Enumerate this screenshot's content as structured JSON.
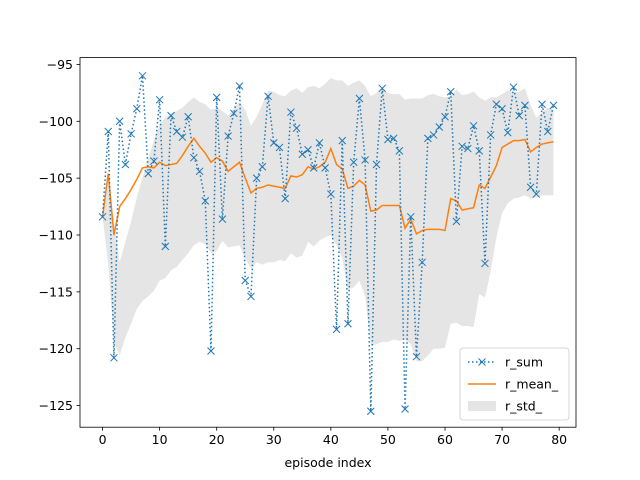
{
  "chart_data": {
    "type": "line",
    "title": "",
    "xlabel": "episode index",
    "ylabel": "",
    "xlim": [
      -3.95,
      82.95
    ],
    "ylim": [
      -126.9,
      -94.4
    ],
    "xticks": [
      0,
      10,
      20,
      30,
      40,
      50,
      60,
      70,
      80
    ],
    "yticks": [
      -125,
      -120,
      -115,
      -110,
      -105,
      -100,
      -95
    ],
    "grid": false,
    "legend_position": "lower-right",
    "colors": {
      "r_sum": "#1f77b4",
      "r_mean_": "#ff7f0e",
      "r_std_": "#d3d3d3"
    },
    "x": [
      0,
      1,
      2,
      3,
      4,
      5,
      6,
      7,
      8,
      9,
      10,
      11,
      12,
      13,
      14,
      15,
      16,
      17,
      18,
      19,
      20,
      21,
      22,
      23,
      24,
      25,
      26,
      27,
      28,
      29,
      30,
      31,
      32,
      33,
      34,
      35,
      36,
      37,
      38,
      39,
      40,
      41,
      42,
      43,
      44,
      45,
      46,
      47,
      48,
      49,
      50,
      51,
      52,
      53,
      54,
      55,
      56,
      57,
      58,
      59,
      60,
      61,
      62,
      63,
      64,
      65,
      66,
      67,
      68,
      69,
      70,
      71,
      72,
      73,
      74,
      75,
      76,
      77,
      78,
      79
    ],
    "series": [
      {
        "name": "r_sum",
        "style": "dotted-x",
        "values": [
          -108.4,
          -100.9,
          -120.8,
          -100.0,
          -103.8,
          -101.1,
          -98.9,
          -96.0,
          -104.6,
          -103.5,
          -98.1,
          -111.0,
          -99.5,
          -100.9,
          -101.4,
          -99.6,
          -103.2,
          -104.4,
          -107.0,
          -120.2,
          -97.9,
          -108.6,
          -101.3,
          -99.3,
          -96.9,
          -114.0,
          -115.4,
          -105.0,
          -104.0,
          -97.8,
          -101.9,
          -102.3,
          -106.8,
          -99.2,
          -100.6,
          -102.9,
          -102.5,
          -104.1,
          -101.9,
          -104.1,
          -106.4,
          -118.3,
          -101.7,
          -117.8,
          -103.6,
          -98.0,
          -103.4,
          -125.5,
          -103.8,
          -97.1,
          -101.6,
          -101.5,
          -102.6,
          -125.3,
          -108.4,
          -120.7,
          -112.4,
          -101.5,
          -101.2,
          -100.5,
          -99.6,
          -97.4,
          -108.8,
          -102.2,
          -102.4,
          -100.4,
          -102.6,
          -112.5,
          -101.2,
          -98.5,
          -98.9,
          -101.0,
          -97.0,
          -99.5,
          -98.6,
          -105.8,
          -106.4,
          -98.5,
          -100.9,
          -98.6
        ]
      },
      {
        "name": "r_mean_",
        "style": "solid",
        "values": [
          -108.4,
          -104.6,
          -110.0,
          -107.5,
          -106.8,
          -106.0,
          -105.1,
          -104.1,
          -104.0,
          -104.1,
          -103.6,
          -103.9,
          -103.8,
          -103.7,
          -103.0,
          -102.2,
          -101.5,
          -102.2,
          -102.8,
          -103.6,
          -103.2,
          -103.5,
          -104.4,
          -104.0,
          -103.6,
          -105.0,
          -106.3,
          -105.9,
          -105.8,
          -105.6,
          -105.7,
          -105.8,
          -105.9,
          -104.8,
          -104.9,
          -104.7,
          -104.0,
          -104.2,
          -104.0,
          -103.6,
          -102.4,
          -103.8,
          -104.2,
          -105.9,
          -105.7,
          -105.2,
          -105.6,
          -107.9,
          -107.8,
          -107.4,
          -107.4,
          -107.4,
          -107.4,
          -109.4,
          -108.6,
          -109.9,
          -109.6,
          -109.5,
          -109.5,
          -109.5,
          -109.6,
          -106.8,
          -107.0,
          -107.8,
          -107.7,
          -107.6,
          -105.6,
          -105.9,
          -104.9,
          -103.9,
          -102.3,
          -102.0,
          -101.7,
          -101.7,
          -101.6,
          -102.7,
          -102.3,
          -102.0,
          -101.9,
          -101.8
        ]
      },
      {
        "name": "r_std_",
        "style": "band",
        "upper": [
          -108.4,
          -105.6,
          -108.8,
          -112.4,
          -110.6,
          -108.8,
          -106.7,
          -104.9,
          -103.2,
          -101.7,
          -100.3,
          -99.7,
          -99.3,
          -99.1,
          -98.8,
          -98.3,
          -97.9,
          -98.3,
          -98.5,
          -99.0,
          -98.8,
          -99.1,
          -99.5,
          -98.9,
          -98.3,
          -99.0,
          -100.4,
          -99.6,
          -98.5,
          -97.3,
          -97.4,
          -97.7,
          -97.8,
          -97.3,
          -97.1,
          -97.5,
          -97.0,
          -96.9,
          -97.1,
          -96.7,
          -96.2,
          -96.4,
          -96.4,
          -96.9,
          -96.6,
          -96.4,
          -96.9,
          -97.8,
          -97.5,
          -97.2,
          -97.5,
          -97.6,
          -97.6,
          -98.1,
          -98.0,
          -98.0,
          -98.0,
          -97.7,
          -97.6,
          -97.8,
          -97.9,
          -97.8,
          -97.2,
          -97.7,
          -97.6,
          -97.4,
          -97.9,
          -98.2,
          -97.9,
          -97.9,
          -97.6,
          -97.3,
          -97.4,
          -97.4,
          -97.1,
          -98.6,
          -99.7,
          -99.2,
          -98.8,
          -98.9
        ],
        "lower": [
          -108.4,
          -112.6,
          -119.4,
          -120.6,
          -119.0,
          -117.8,
          -116.5,
          -115.8,
          -115.4,
          -114.9,
          -114.0,
          -113.8,
          -113.1,
          -112.8,
          -112.2,
          -111.6,
          -110.9,
          -110.6,
          -110.8,
          -111.6,
          -111.4,
          -110.5,
          -111.1,
          -111.0,
          -110.9,
          -112.1,
          -112.9,
          -112.4,
          -112.6,
          -112.4,
          -112.4,
          -112.2,
          -112.3,
          -111.6,
          -112.0,
          -111.8,
          -110.6,
          -111.0,
          -110.5,
          -110.2,
          -110.0,
          -110.9,
          -112.0,
          -114.8,
          -114.6,
          -114.0,
          -115.4,
          -119.7,
          -119.6,
          -119.4,
          -119.4,
          -119.2,
          -119.3,
          -119.2,
          -119.6,
          -121.1,
          -121.1,
          -120.6,
          -120.0,
          -120.0,
          -119.9,
          -117.8,
          -117.7,
          -118.0,
          -118.0,
          -118.1,
          -115.2,
          -115.5,
          -113.2,
          -110.2,
          -108.1,
          -107.2,
          -106.8,
          -106.7,
          -106.5,
          -106.8,
          -106.7,
          -106.5,
          -106.5,
          -106.5
        ]
      }
    ]
  }
}
